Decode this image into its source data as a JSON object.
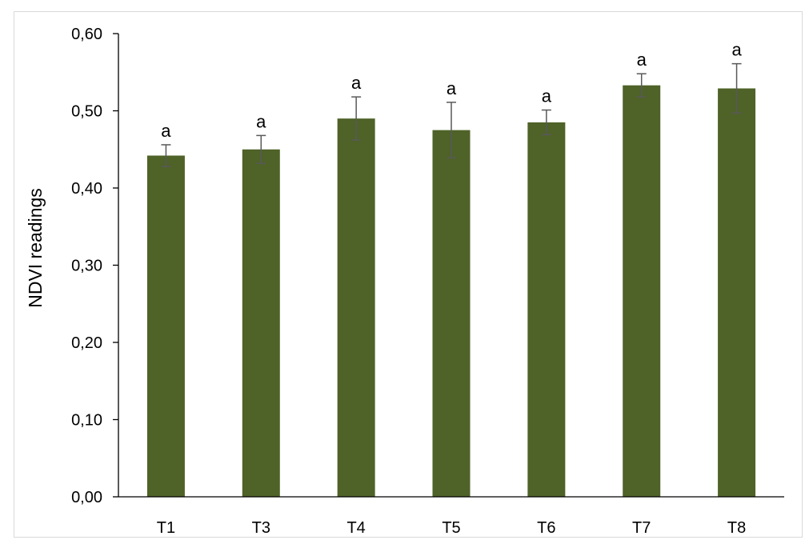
{
  "chart_data": {
    "type": "bar",
    "title": "",
    "xlabel": "",
    "ylabel": "NDVI readings",
    "categories": [
      "T1",
      "T3",
      "T4",
      "T5",
      "T6",
      "T7",
      "T8"
    ],
    "values": [
      0.442,
      0.45,
      0.49,
      0.475,
      0.485,
      0.533,
      0.529
    ],
    "error": [
      0.014,
      0.018,
      0.028,
      0.036,
      0.016,
      0.015,
      0.032
    ],
    "data_labels": [
      "a",
      "a",
      "a",
      "a",
      "a",
      "a",
      "a"
    ],
    "ylim": [
      0,
      0.6
    ],
    "yticks": [
      0,
      0.1,
      0.2,
      0.3,
      0.4,
      0.5,
      0.6
    ],
    "ytick_labels": [
      "0,00",
      "0,10",
      "0,20",
      "0,30",
      "0,40",
      "0,50",
      "0,60"
    ],
    "grid": false,
    "legend": "none",
    "colors": {
      "bar": "#4f6228",
      "error_bar": "#595959",
      "axis": "#000000"
    }
  }
}
